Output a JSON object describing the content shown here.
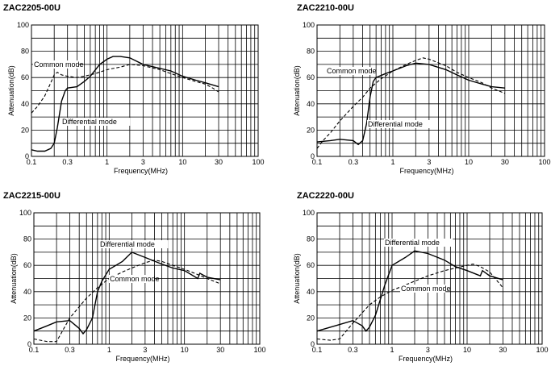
{
  "chart_data": [
    {
      "type": "line",
      "title": "ZAC2205-00U",
      "xlabel": "Frequency(MHz)",
      "ylabel": "Attenuation(dB)",
      "x_scale": "log",
      "xlim": [
        0.1,
        100
      ],
      "ylim": [
        0,
        100
      ],
      "x_ticks": [
        "0.1",
        "0.3",
        "1",
        "3",
        "10",
        "30",
        "100"
      ],
      "y_ticks": [
        "0",
        "20",
        "40",
        "60",
        "80",
        "100"
      ],
      "grid": true,
      "series": [
        {
          "name": "Common mode",
          "style": "dashed",
          "x": [
            0.1,
            0.12,
            0.15,
            0.18,
            0.2,
            0.22,
            0.25,
            0.3,
            0.4,
            0.5,
            0.7,
            1,
            1.5,
            2,
            3,
            5,
            7,
            10,
            15,
            20,
            25,
            30
          ],
          "y": [
            33,
            38,
            46,
            56,
            62,
            64,
            62,
            61,
            60,
            61,
            63,
            66,
            68,
            70,
            69,
            66,
            63,
            60,
            57,
            55,
            52,
            49
          ]
        },
        {
          "name": "Differential mode",
          "style": "solid",
          "x": [
            0.1,
            0.12,
            0.15,
            0.18,
            0.2,
            0.22,
            0.25,
            0.28,
            0.3,
            0.4,
            0.5,
            0.6,
            0.8,
            1,
            1.2,
            1.5,
            2,
            3,
            5,
            7,
            10,
            15,
            20,
            30
          ],
          "y": [
            5,
            4,
            4,
            6,
            10,
            22,
            42,
            50,
            52,
            53,
            57,
            61,
            70,
            74,
            76,
            76,
            75,
            70,
            67,
            65,
            61,
            58,
            56,
            53
          ]
        }
      ],
      "annotations": [
        "Common mode",
        "Differential mode"
      ]
    },
    {
      "type": "line",
      "title": "ZAC2210-00U",
      "xlabel": "Frequency(MHz)",
      "ylabel": "Attenuation(dB)",
      "x_scale": "log",
      "xlim": [
        0.1,
        100
      ],
      "ylim": [
        0,
        100
      ],
      "x_ticks": [
        "0.1",
        "0.3",
        "1",
        "3",
        "10",
        "30",
        "100"
      ],
      "y_ticks": [
        "0",
        "20",
        "40",
        "60",
        "80",
        "100"
      ],
      "grid": true,
      "series": [
        {
          "name": "Common mode",
          "style": "dashed",
          "x": [
            0.1,
            0.12,
            0.15,
            0.2,
            0.3,
            0.4,
            0.5,
            0.7,
            1,
            1.5,
            2,
            2.5,
            3,
            5,
            7,
            10,
            15,
            20,
            30
          ],
          "y": [
            6,
            12,
            18,
            27,
            38,
            45,
            52,
            59,
            65,
            70,
            73,
            75,
            74,
            69,
            64,
            60,
            56,
            52,
            48
          ]
        },
        {
          "name": "Differential mode",
          "style": "solid",
          "x": [
            0.1,
            0.15,
            0.2,
            0.3,
            0.35,
            0.4,
            0.45,
            0.5,
            0.55,
            0.6,
            0.8,
            1,
            1.5,
            2,
            3,
            5,
            7,
            10,
            15,
            20,
            30
          ],
          "y": [
            11,
            12,
            13,
            12,
            9,
            12,
            25,
            45,
            57,
            60,
            63,
            65,
            69,
            71,
            70,
            66,
            62,
            58,
            55,
            53,
            52
          ]
        }
      ],
      "annotations": [
        "Common mode",
        "Differential mode"
      ]
    },
    {
      "type": "line",
      "title": "ZAC2215-00U",
      "xlabel": "Frequency(MHz)",
      "ylabel": "Attenuation(dB)",
      "x_scale": "log",
      "xlim": [
        0.1,
        100
      ],
      "ylim": [
        0,
        100
      ],
      "x_ticks": [
        "0.1",
        "0.3",
        "1",
        "3",
        "10",
        "30",
        "100"
      ],
      "y_ticks": [
        "0",
        "20",
        "40",
        "60",
        "80",
        "100"
      ],
      "grid": true,
      "series": [
        {
          "name": "Differential mode",
          "style": "solid",
          "x": [
            0.1,
            0.15,
            0.2,
            0.3,
            0.4,
            0.45,
            0.5,
            0.6,
            0.7,
            0.8,
            1,
            1.5,
            2,
            3,
            5,
            7,
            10,
            15,
            16,
            20,
            30
          ],
          "y": [
            10,
            14,
            17,
            18,
            12,
            8,
            11,
            20,
            40,
            48,
            57,
            63,
            70,
            66,
            61,
            58,
            56,
            50,
            54,
            51,
            49
          ]
        },
        {
          "name": "Common mode",
          "style": "dashed",
          "x": [
            0.1,
            0.15,
            0.2,
            0.3,
            0.5,
            0.7,
            1,
            1.5,
            2,
            3,
            4,
            5,
            7,
            10,
            15,
            20,
            30
          ],
          "y": [
            4,
            2,
            2,
            20,
            35,
            43,
            50,
            55,
            58,
            62,
            64,
            63,
            60,
            57,
            53,
            50,
            46
          ]
        }
      ],
      "annotations": [
        "Differential mode",
        "Common mode"
      ]
    },
    {
      "type": "line",
      "title": "ZAC2220-00U",
      "xlabel": "Frequency(MHz)",
      "ylabel": "Attenuation(dB)",
      "x_scale": "log",
      "xlim": [
        0.1,
        100
      ],
      "ylim": [
        0,
        100
      ],
      "x_ticks": [
        "0.1",
        "0.3",
        "1",
        "3",
        "10",
        "30",
        "100"
      ],
      "y_ticks": [
        "0",
        "20",
        "40",
        "60",
        "80",
        "100"
      ],
      "grid": true,
      "series": [
        {
          "name": "Differential mode",
          "style": "solid",
          "x": [
            0.1,
            0.2,
            0.3,
            0.4,
            0.45,
            0.5,
            0.6,
            0.8,
            1,
            1.5,
            2,
            3,
            5,
            7,
            10,
            15,
            16,
            20,
            30
          ],
          "y": [
            10,
            15,
            18,
            14,
            10,
            13,
            22,
            45,
            60,
            66,
            71,
            69,
            64,
            59,
            56,
            52,
            56,
            52,
            49
          ]
        },
        {
          "name": "Common mode",
          "style": "dashed",
          "x": [
            0.1,
            0.15,
            0.2,
            0.3,
            0.5,
            0.7,
            1,
            1.5,
            2,
            3,
            5,
            7,
            10,
            12,
            15,
            20,
            30
          ],
          "y": [
            4,
            3,
            4,
            16,
            30,
            36,
            41,
            45,
            48,
            52,
            56,
            58,
            60,
            61,
            59,
            55,
            43
          ]
        }
      ],
      "annotations": [
        "Differential mode",
        "Common mode"
      ]
    }
  ]
}
